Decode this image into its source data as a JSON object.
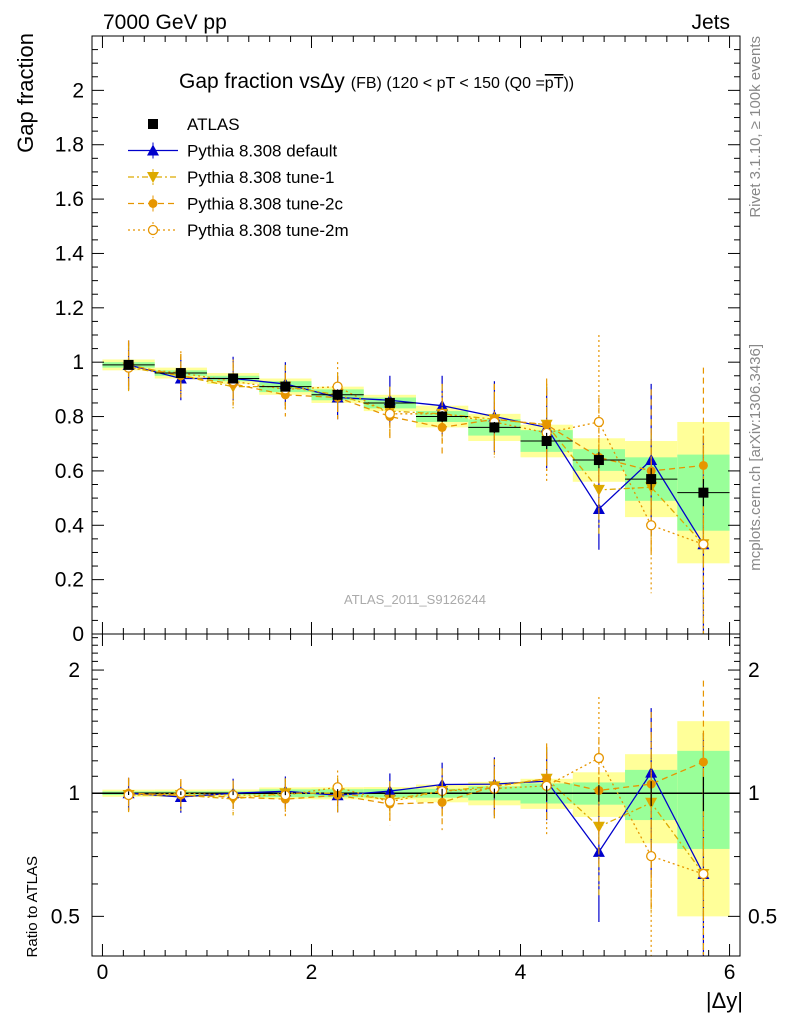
{
  "header": {
    "left": "7000 GeV pp",
    "right": "Jets"
  },
  "side_labels": {
    "rivet": "Rivet 3.1.10, ≥ 100k events",
    "mcplots": "mcplots.cern.ch [arXiv:1306.3436]"
  },
  "chart_data": [
    {
      "type": "scatter",
      "title": {
        "main": "Gap fraction vs",
        "dy": "Δy",
        "small": "(FB) (120 < pT < 150 (Q0 =",
        "pt": "pT",
        "close": "))"
      },
      "watermark": "ATLAS_2011_S9126244",
      "xlabel": "|Δy|",
      "ylabel": "Gap fraction",
      "xlim": [
        -0.1,
        6.1
      ],
      "ylim": [
        0,
        2.2
      ],
      "yticks": [
        "0",
        "0.2",
        "0.4",
        "0.6",
        "0.8",
        "1",
        "1.2",
        "1.4",
        "1.6",
        "1.8",
        "2"
      ],
      "legend_position": "top-left",
      "x": [
        0.25,
        0.75,
        1.25,
        1.75,
        2.25,
        2.75,
        3.25,
        3.75,
        4.25,
        4.75,
        5.25,
        5.75
      ],
      "x_bin_halfwidth": 0.25,
      "series": [
        {
          "name": "ATLAS",
          "marker": "square-filled",
          "color": "#000000",
          "values": [
            0.99,
            0.96,
            0.94,
            0.91,
            0.88,
            0.85,
            0.8,
            0.76,
            0.71,
            0.64,
            0.57,
            0.52
          ],
          "errors": [
            0.01,
            0.01,
            0.01,
            0.01,
            0.02,
            0.02,
            0.02,
            0.02,
            0.03,
            0.03,
            0.04,
            0.05
          ]
        },
        {
          "name": "Pythia 8.308 default",
          "marker": "triangle-up-filled",
          "line": "solid",
          "color": "#0000cc",
          "values": [
            0.99,
            0.94,
            0.94,
            0.92,
            0.87,
            0.86,
            0.84,
            0.8,
            0.76,
            0.46,
            0.64,
            0.33
          ],
          "errors": [
            0.09,
            0.08,
            0.08,
            0.08,
            0.08,
            0.09,
            0.11,
            0.13,
            0.15,
            0.15,
            0.28,
            0.4
          ]
        },
        {
          "name": "Pythia 8.308 tune-1",
          "marker": "triangle-down-filled",
          "line": "dashdot",
          "color": "#ddaa00",
          "values": [
            0.98,
            0.95,
            0.91,
            0.91,
            0.88,
            0.82,
            0.81,
            0.79,
            0.77,
            0.53,
            0.54,
            0.33
          ],
          "errors": [
            0.09,
            0.08,
            0.08,
            0.08,
            0.08,
            0.09,
            0.11,
            0.13,
            0.15,
            0.17,
            0.25,
            0.4
          ]
        },
        {
          "name": "Pythia 8.308 tune-2c",
          "marker": "circle-filled",
          "line": "dashed",
          "color": "#e69500",
          "values": [
            0.99,
            0.95,
            0.92,
            0.88,
            0.87,
            0.8,
            0.76,
            0.79,
            0.77,
            0.65,
            0.6,
            0.62
          ],
          "errors": [
            0.09,
            0.08,
            0.08,
            0.08,
            0.08,
            0.09,
            0.11,
            0.13,
            0.17,
            0.22,
            0.3,
            0.36
          ]
        },
        {
          "name": "Pythia 8.308 tune-2m",
          "marker": "circle-open",
          "line": "dotted",
          "color": "#e69500",
          "values": [
            0.98,
            0.96,
            0.93,
            0.9,
            0.91,
            0.81,
            0.81,
            0.78,
            0.74,
            0.78,
            0.4,
            0.33
          ],
          "errors": [
            0.09,
            0.08,
            0.08,
            0.08,
            0.09,
            0.09,
            0.11,
            0.13,
            0.18,
            0.32,
            0.25,
            0.4
          ]
        }
      ],
      "data_band_inner": [
        0.01,
        0.01,
        0.01,
        0.02,
        0.02,
        0.02,
        0.02,
        0.03,
        0.04,
        0.04,
        0.08,
        0.14
      ],
      "data_band_outer": [
        0.02,
        0.02,
        0.02,
        0.03,
        0.03,
        0.03,
        0.04,
        0.05,
        0.06,
        0.08,
        0.14,
        0.26
      ]
    },
    {
      "type": "scatter",
      "ylabel": "Ratio to ATLAS",
      "scale": "log",
      "ylim": [
        0.4,
        2.45
      ],
      "yticks": [
        "0.5",
        "1",
        "2"
      ],
      "reference_line": 1
    }
  ]
}
